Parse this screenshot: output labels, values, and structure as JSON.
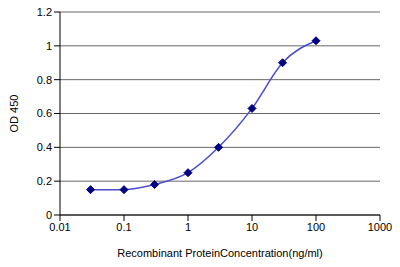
{
  "chart_data": {
    "type": "line",
    "x_label": "Recombinant ProteinConcentration(ng/ml)",
    "y_label": "OD 450",
    "x": [
      0.03,
      0.1,
      0.3,
      1,
      3,
      10,
      30,
      100
    ],
    "values": [
      0.15,
      0.15,
      0.18,
      0.25,
      0.4,
      0.63,
      0.9,
      1.03
    ],
    "color": "#4b4bc8",
    "marker": "diamond",
    "log": "x",
    "xlim": [
      0.01,
      1000
    ],
    "xticks": [
      0.01,
      0.1,
      1,
      10,
      100,
      1000
    ],
    "ylim": [
      0,
      1.2
    ],
    "yticks": [
      0,
      0.2,
      0.4,
      0.6,
      0.8,
      1,
      1.2
    ],
    "grid": true
  }
}
